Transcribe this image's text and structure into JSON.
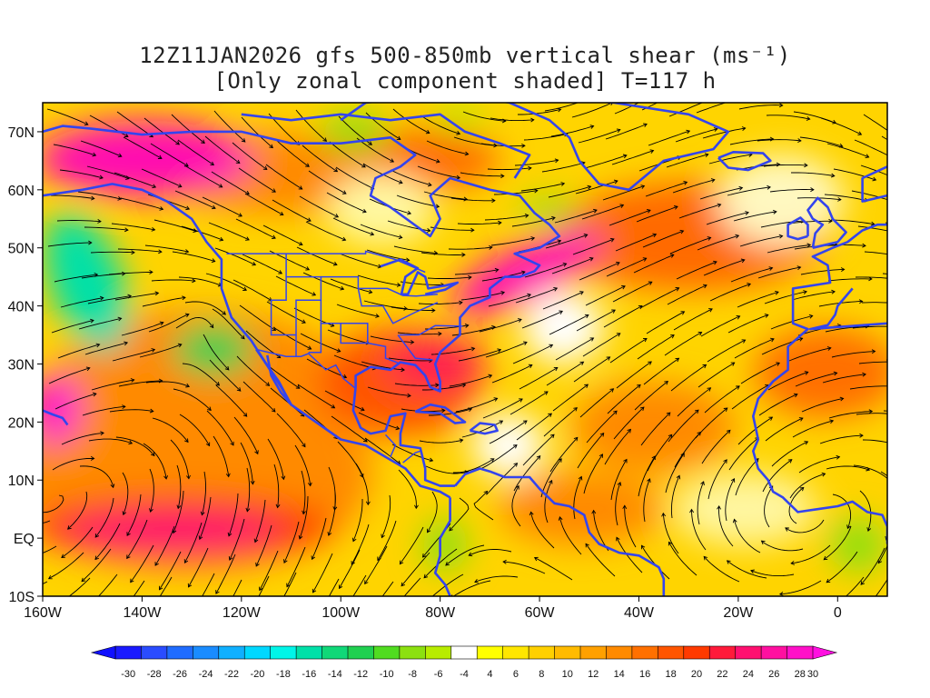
{
  "title_line1": "12Z11JAN2026 gfs 500-850mb vertical shear (ms⁻¹)",
  "title_line2": "[Only zonal component shaded] T=117 h",
  "lon_labels": [
    "160W",
    "140W",
    "120W",
    "100W",
    "80W",
    "60W",
    "40W",
    "20W",
    "0"
  ],
  "lon_values": [
    -160,
    -140,
    -120,
    -100,
    -80,
    -60,
    -40,
    -20,
    0
  ],
  "lat_labels": [
    "70N",
    "60N",
    "50N",
    "40N",
    "30N",
    "20N",
    "10N",
    "EQ",
    "10S"
  ],
  "lat_values": [
    70,
    60,
    50,
    40,
    30,
    20,
    10,
    0,
    -10
  ],
  "map_extent": {
    "lon_min": -160,
    "lon_max": 10,
    "lat_min": -10,
    "lat_max": 75
  },
  "colorbar": {
    "labels": [
      "-30",
      "-28",
      "-26",
      "-24",
      "-22",
      "-20",
      "-18",
      "-16",
      "-14",
      "-12",
      "-10",
      "-8",
      "-6",
      "-4",
      "4",
      "6",
      "8",
      "10",
      "12",
      "14",
      "16",
      "18",
      "20",
      "22",
      "24",
      "26",
      "28",
      "30"
    ],
    "colors": [
      "#1a1aff",
      "#2a4cff",
      "#1f6cff",
      "#1a8cff",
      "#10b0ff",
      "#00d8ff",
      "#00f5e8",
      "#00e0a8",
      "#10d878",
      "#20d050",
      "#50dc20",
      "#8ce010",
      "#b8ec00",
      "#ffffff",
      "#ffff00",
      "#ffe600",
      "#ffd000",
      "#ffbb00",
      "#ffa000",
      "#ff8a00",
      "#ff7000",
      "#ff5500",
      "#ff3a00",
      "#ff1a3a",
      "#ff1070",
      "#ff10a0",
      "#ff10c8"
    ]
  },
  "colors": {
    "coast": "#3344ee",
    "stream": "#000000",
    "frame": "#000000"
  }
}
